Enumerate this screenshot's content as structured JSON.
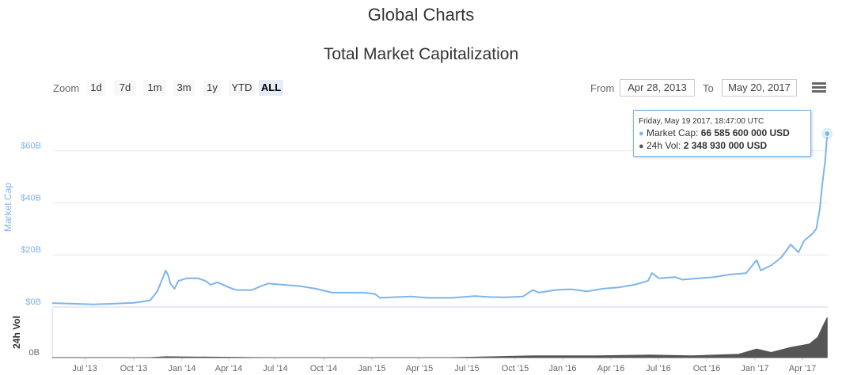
{
  "page": {
    "title": "Global Charts"
  },
  "toolbar": {
    "zoom_label": "Zoom",
    "zoom_buttons": [
      "1d",
      "7d",
      "1m",
      "3m",
      "1y",
      "YTD",
      "ALL"
    ],
    "active_zoom": "ALL",
    "from_label": "From",
    "from_value": "Apr 28, 2013",
    "to_label": "To",
    "to_value": "May 20, 2017",
    "menu_icon": "hamburger-menu-icon"
  },
  "tooltip": {
    "date": "Friday, May 19 2017, 18:47:00 UTC",
    "market_cap_label": "Market Cap:",
    "market_cap_value": "66 585 600 000 USD",
    "volume_label": "24h Vol:",
    "volume_value": "2 348 930 000 USD"
  },
  "colors": {
    "market_cap": "#7cb5ec",
    "volume": "#555555",
    "grid": "#e6e6e6"
  },
  "chart_data": {
    "type": "area",
    "title": "Total Market Capitalization",
    "x_tick_labels": [
      "Jul '13",
      "Oct '13",
      "Jan '14",
      "Apr '14",
      "Jul '14",
      "Oct '14",
      "Jan '15",
      "Apr '15",
      "Jul '15",
      "Oct '15",
      "Jan '16",
      "Apr '16",
      "Jul '16",
      "Oct '16",
      "Jan '17",
      "Apr '17"
    ],
    "xlim": [
      "2013-04-28",
      "2017-05-20"
    ],
    "y_axis": {
      "label": "Market Cap",
      "tick_labels": [
        "$0B",
        "$20B",
        "$40B",
        "$60B"
      ],
      "ticks": [
        0,
        20,
        40,
        60
      ],
      "ylim": [
        0,
        76
      ],
      "unit": "billion USD"
    },
    "volume_axis": {
      "label": "24h Vol",
      "tick_labels": [
        "0B"
      ]
    },
    "series": [
      {
        "name": "Market Cap",
        "points": [
          [
            "2013-04-28",
            1.5
          ],
          [
            "2013-06-01",
            1.3
          ],
          [
            "2013-07-15",
            1.0
          ],
          [
            "2013-08-15",
            1.2
          ],
          [
            "2013-10-01",
            1.6
          ],
          [
            "2013-11-01",
            2.5
          ],
          [
            "2013-11-15",
            6.0
          ],
          [
            "2013-11-25",
            11.0
          ],
          [
            "2013-12-01",
            14.0
          ],
          [
            "2013-12-06",
            12.0
          ],
          [
            "2013-12-10",
            9.0
          ],
          [
            "2013-12-18",
            7.0
          ],
          [
            "2013-12-25",
            10.0
          ],
          [
            "2014-01-10",
            11.0
          ],
          [
            "2014-02-01",
            11.0
          ],
          [
            "2014-02-15",
            10.0
          ],
          [
            "2014-02-25",
            8.5
          ],
          [
            "2014-03-10",
            9.5
          ],
          [
            "2014-04-01",
            7.5
          ],
          [
            "2014-04-15",
            6.5
          ],
          [
            "2014-05-15",
            6.5
          ],
          [
            "2014-06-01",
            8.0
          ],
          [
            "2014-06-15",
            9.0
          ],
          [
            "2014-07-15",
            8.5
          ],
          [
            "2014-08-15",
            8.0
          ],
          [
            "2014-09-15",
            7.0
          ],
          [
            "2014-10-15",
            5.5
          ],
          [
            "2014-11-15",
            5.5
          ],
          [
            "2014-12-15",
            5.5
          ],
          [
            "2015-01-05",
            5.0
          ],
          [
            "2015-01-15",
            3.5
          ],
          [
            "2015-02-15",
            3.8
          ],
          [
            "2015-03-15",
            4.0
          ],
          [
            "2015-04-15",
            3.5
          ],
          [
            "2015-06-01",
            3.5
          ],
          [
            "2015-07-15",
            4.2
          ],
          [
            "2015-08-15",
            3.8
          ],
          [
            "2015-09-15",
            3.7
          ],
          [
            "2015-10-15",
            4.0
          ],
          [
            "2015-11-03",
            6.5
          ],
          [
            "2015-11-15",
            5.5
          ],
          [
            "2015-12-15",
            6.5
          ],
          [
            "2016-01-15",
            6.8
          ],
          [
            "2016-02-15",
            6.0
          ],
          [
            "2016-03-15",
            7.0
          ],
          [
            "2016-04-15",
            7.5
          ],
          [
            "2016-05-15",
            8.5
          ],
          [
            "2016-06-10",
            10.0
          ],
          [
            "2016-06-18",
            13.0
          ],
          [
            "2016-07-01",
            11.0
          ],
          [
            "2016-08-01",
            11.5
          ],
          [
            "2016-08-15",
            10.5
          ],
          [
            "2016-09-15",
            11.0
          ],
          [
            "2016-10-15",
            11.5
          ],
          [
            "2016-11-15",
            12.5
          ],
          [
            "2016-12-15",
            13.0
          ],
          [
            "2017-01-04",
            18.0
          ],
          [
            "2017-01-12",
            14.0
          ],
          [
            "2017-02-01",
            16.0
          ],
          [
            "2017-02-20",
            19.0
          ],
          [
            "2017-03-03",
            22.0
          ],
          [
            "2017-03-10",
            24.0
          ],
          [
            "2017-03-25",
            21.0
          ],
          [
            "2017-04-05",
            25.5
          ],
          [
            "2017-04-20",
            28.0
          ],
          [
            "2017-04-28",
            30.0
          ],
          [
            "2017-05-05",
            38.0
          ],
          [
            "2017-05-10",
            48.0
          ],
          [
            "2017-05-15",
            56.0
          ],
          [
            "2017-05-19",
            66.6
          ]
        ]
      },
      {
        "name": "24h Vol",
        "points": [
          [
            "2013-04-28",
            0.0
          ],
          [
            "2013-11-01",
            0.0
          ],
          [
            "2013-12-01",
            0.05
          ],
          [
            "2014-06-01",
            0.0
          ],
          [
            "2015-06-01",
            0.0
          ],
          [
            "2015-11-03",
            0.1
          ],
          [
            "2016-03-01",
            0.1
          ],
          [
            "2016-06-15",
            0.15
          ],
          [
            "2016-09-01",
            0.1
          ],
          [
            "2016-12-01",
            0.2
          ],
          [
            "2017-01-04",
            0.5
          ],
          [
            "2017-02-01",
            0.3
          ],
          [
            "2017-03-10",
            0.6
          ],
          [
            "2017-04-15",
            0.8
          ],
          [
            "2017-05-01",
            1.2
          ],
          [
            "2017-05-10",
            1.8
          ],
          [
            "2017-05-19",
            2.35
          ]
        ]
      }
    ]
  }
}
